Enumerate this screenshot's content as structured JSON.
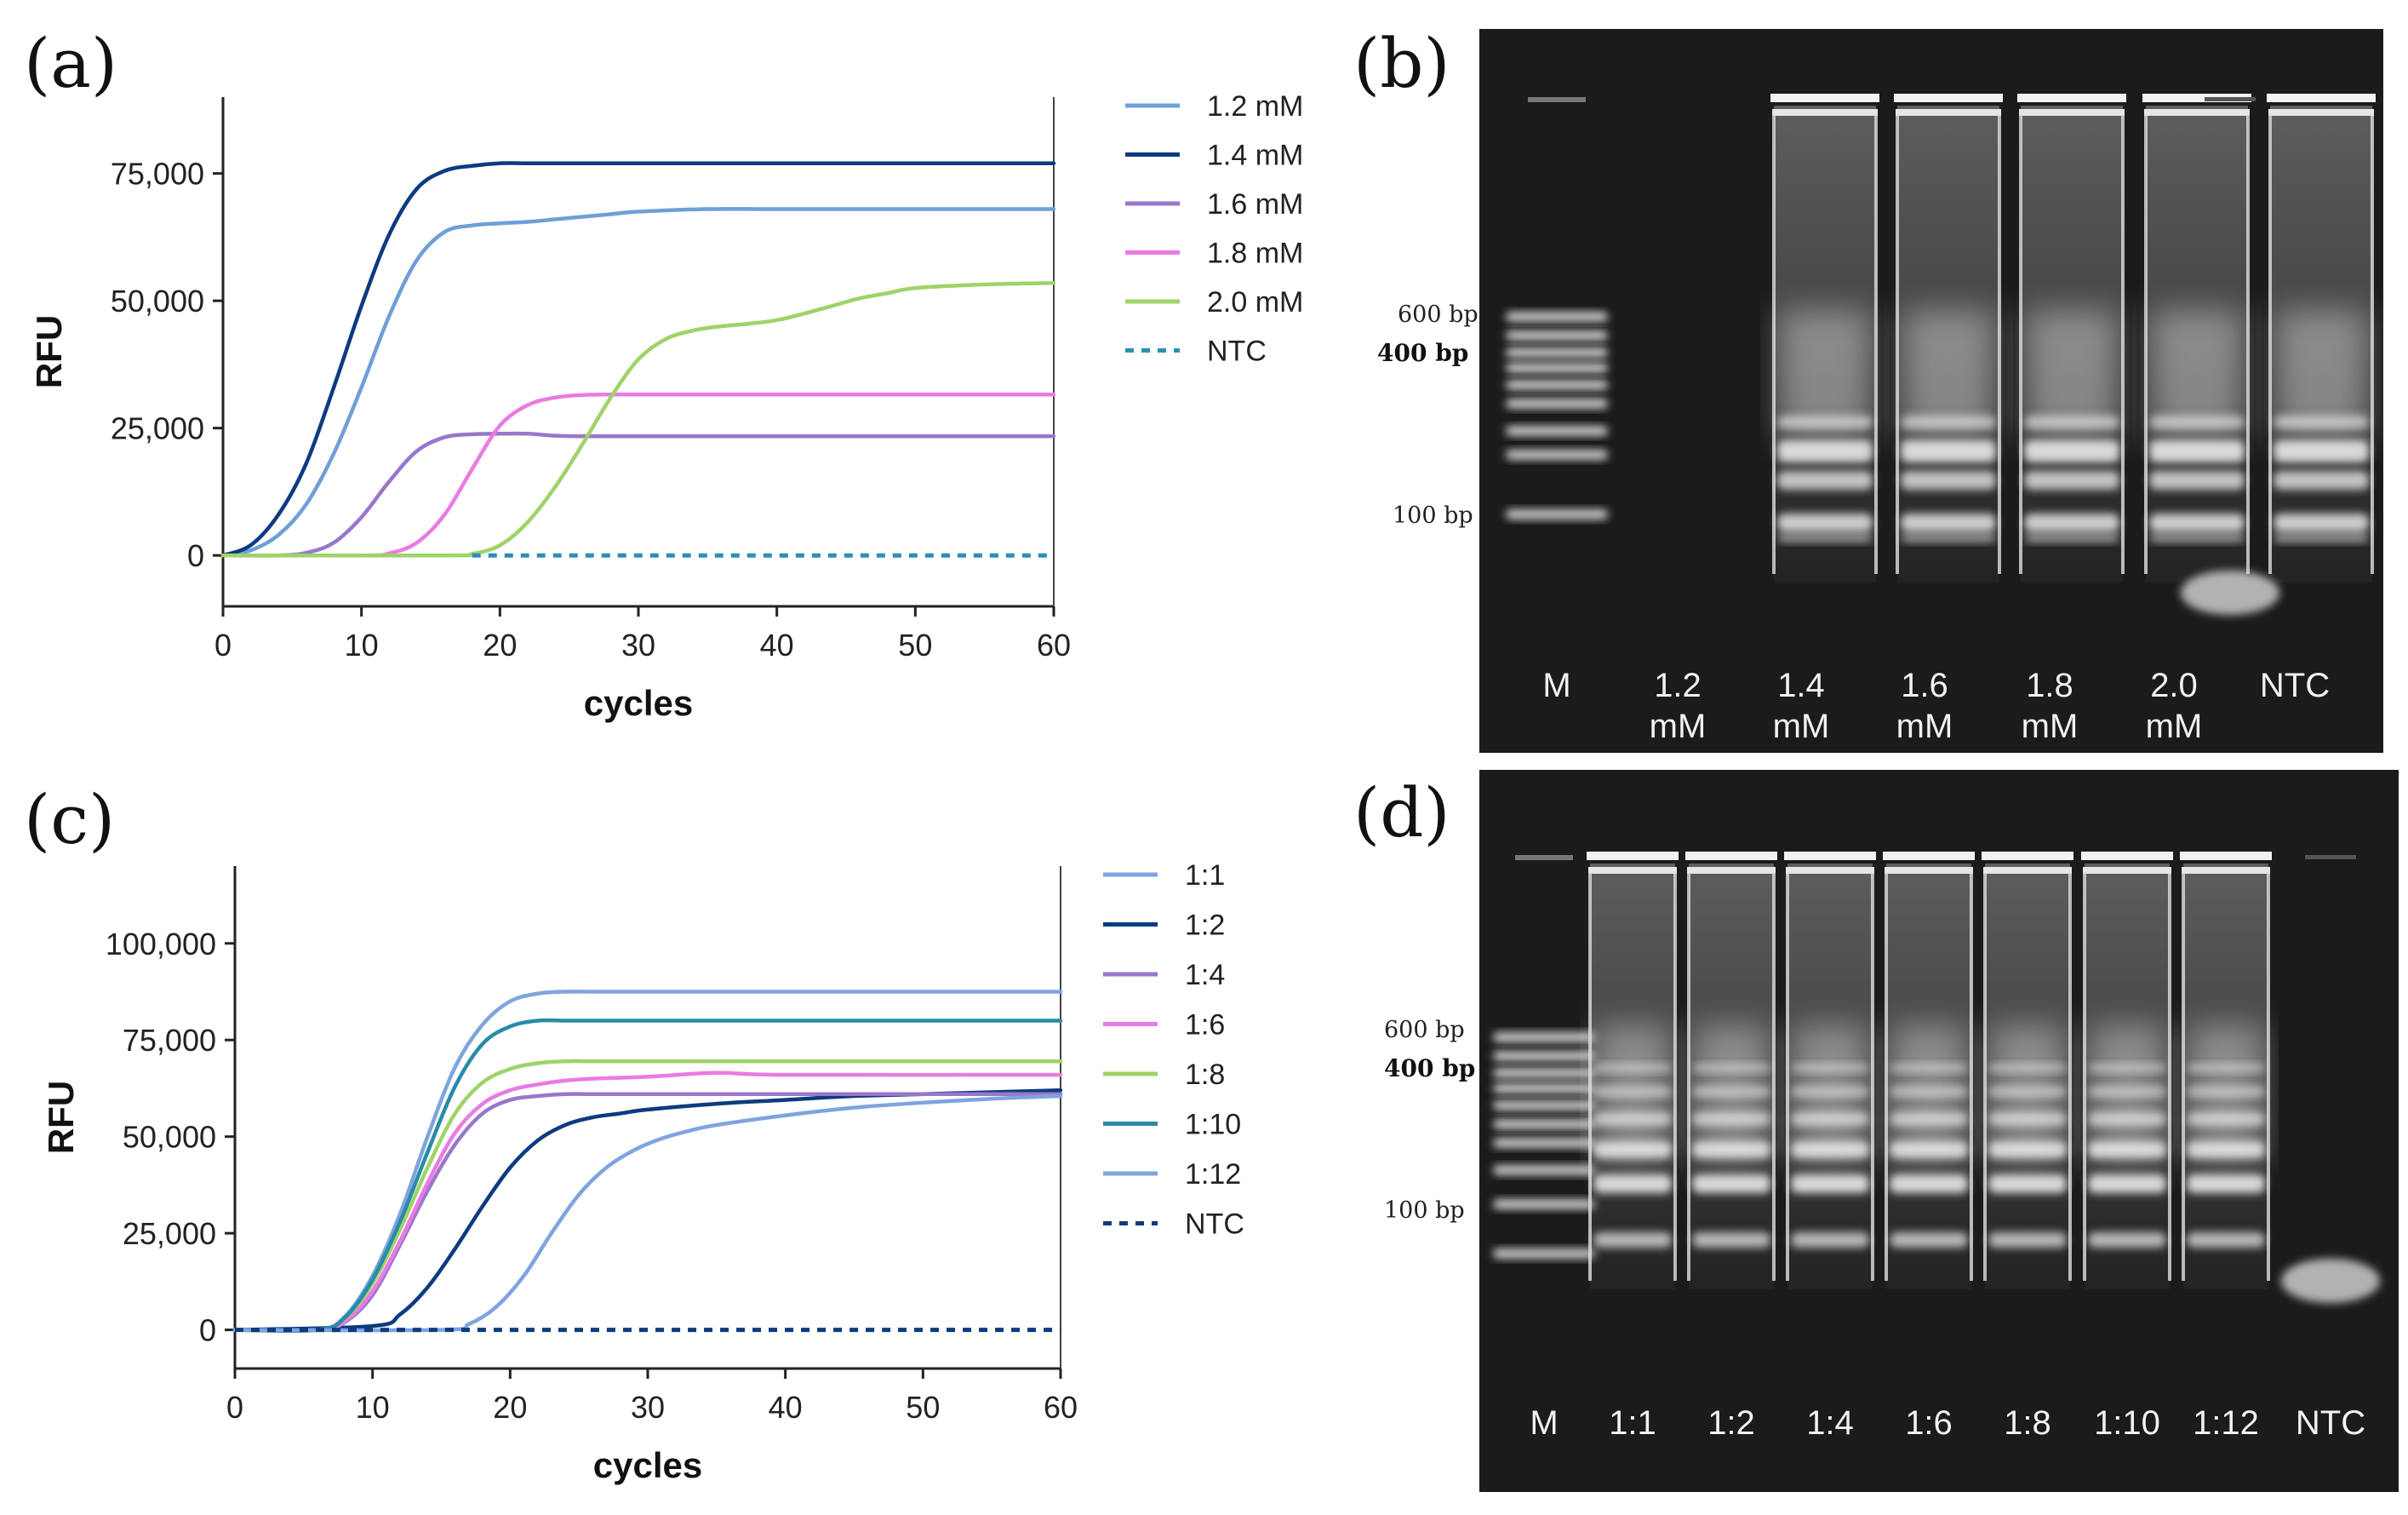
{
  "panels": {
    "a": "(a)",
    "b": "(b)",
    "c": "(c)",
    "d": "(d)"
  },
  "chart_data": [
    {
      "type": "line",
      "panel": "(a)",
      "xlabel": "cycles",
      "ylabel": "RFU",
      "xlim": [
        0,
        60
      ],
      "ylim": [
        -10000,
        90000
      ],
      "xticks": [
        0,
        10,
        20,
        30,
        40,
        50,
        60
      ],
      "yticks": [
        0,
        25000,
        50000,
        75000
      ],
      "ytick_labels": [
        "0",
        "25,000",
        "50,000",
        "75,000"
      ],
      "legend_position": "right",
      "series": [
        {
          "name": "1.2 mM",
          "color": "#6f9fd8",
          "dashed": false,
          "x": [
            0,
            2,
            4,
            6,
            8,
            10,
            12,
            14,
            16,
            18,
            20,
            22,
            24,
            26,
            28,
            30,
            35,
            40,
            50,
            60
          ],
          "y": [
            0,
            1000,
            4000,
            10000,
            20000,
            33000,
            47000,
            58000,
            63500,
            64800,
            65200,
            65500,
            66000,
            66500,
            67000,
            67500,
            68000,
            68000,
            68000,
            68000
          ]
        },
        {
          "name": "1.4 mM",
          "color": "#0d3b80",
          "dashed": false,
          "x": [
            0,
            2,
            4,
            6,
            8,
            10,
            12,
            14,
            16,
            18,
            20,
            22,
            24,
            30,
            40,
            50,
            60
          ],
          "y": [
            0,
            2000,
            8000,
            18000,
            33000,
            49000,
            63000,
            72000,
            75500,
            76500,
            77000,
            77000,
            77000,
            77000,
            77000,
            77000,
            77000
          ]
        },
        {
          "name": "1.6 mM",
          "color": "#9a76cc",
          "dashed": false,
          "x": [
            0,
            4,
            6,
            8,
            10,
            12,
            14,
            16,
            18,
            20,
            22,
            24,
            26,
            30,
            40,
            50,
            60
          ],
          "y": [
            0,
            0,
            500,
            2500,
            7500,
            14500,
            20500,
            23200,
            23800,
            23900,
            23900,
            23500,
            23400,
            23400,
            23400,
            23400,
            23400
          ]
        },
        {
          "name": "1.8 mM",
          "color": "#e97be3",
          "dashed": false,
          "x": [
            0,
            10,
            12,
            14,
            16,
            18,
            20,
            22,
            24,
            26,
            28,
            30,
            35,
            40,
            50,
            60
          ],
          "y": [
            0,
            0,
            400,
            2500,
            8000,
            17000,
            25500,
            29500,
            31000,
            31500,
            31600,
            31600,
            31600,
            31600,
            31600,
            31600
          ]
        },
        {
          "name": "2.0 mM",
          "color": "#9fd36a",
          "dashed": false,
          "x": [
            0,
            16,
            18,
            20,
            22,
            24,
            26,
            28,
            30,
            32,
            34,
            36,
            38,
            40,
            42,
            44,
            46,
            48,
            50,
            55,
            60
          ],
          "y": [
            0,
            0,
            300,
            2000,
            6500,
            13500,
            22000,
            31000,
            38500,
            42500,
            44200,
            45000,
            45500,
            46200,
            47500,
            49000,
            50500,
            51500,
            52500,
            53200,
            53500
          ]
        },
        {
          "name": "NTC",
          "color": "#2b8fb5",
          "dashed": true,
          "x": [
            18,
            60
          ],
          "y": [
            0,
            0
          ]
        }
      ]
    },
    {
      "type": "line",
      "panel": "(c)",
      "xlabel": "cycles",
      "ylabel": "RFU",
      "xlim": [
        0,
        60
      ],
      "ylim": [
        -10000,
        120000
      ],
      "xticks": [
        0,
        10,
        20,
        30,
        40,
        50,
        60
      ],
      "yticks": [
        0,
        25000,
        50000,
        75000,
        100000
      ],
      "ytick_labels": [
        "0",
        "25,000",
        "50,000",
        "75,000",
        "100,000"
      ],
      "legend_position": "right",
      "series": [
        {
          "name": "1:1",
          "color": "#7fa4de",
          "dashed": false,
          "x": [
            0,
            6,
            8,
            10,
            12,
            14,
            16,
            18,
            20,
            22,
            24,
            26,
            30,
            40,
            50,
            60
          ],
          "y": [
            0,
            0,
            3500,
            14000,
            30000,
            50000,
            68000,
            79000,
            85000,
            87000,
            87500,
            87500,
            87500,
            87500,
            87500,
            87500
          ]
        },
        {
          "name": "1:2",
          "color": "#0d3b80",
          "dashed": false,
          "x": [
            0,
            10,
            12,
            14,
            16,
            18,
            20,
            22,
            24,
            26,
            28,
            30,
            35,
            40,
            45,
            50,
            55,
            60
          ],
          "y": [
            0,
            1000,
            4000,
            11000,
            21000,
            32000,
            42000,
            49000,
            53000,
            55000,
            56000,
            57000,
            58500,
            59500,
            60500,
            61000,
            61500,
            62000
          ]
        },
        {
          "name": "1:4",
          "color": "#9a76cc",
          "dashed": false,
          "x": [
            0,
            6,
            8,
            10,
            12,
            14,
            16,
            18,
            20,
            22,
            24,
            26,
            30,
            40,
            50,
            60
          ],
          "y": [
            0,
            0,
            2000,
            9000,
            22000,
            36000,
            48000,
            56000,
            59500,
            60500,
            61000,
            61000,
            61000,
            61000,
            61000,
            61000
          ]
        },
        {
          "name": "1:6",
          "color": "#e97be3",
          "dashed": false,
          "x": [
            0,
            6,
            8,
            10,
            12,
            14,
            16,
            18,
            20,
            22,
            24,
            26,
            30,
            35,
            40,
            60
          ],
          "y": [
            0,
            0,
            2200,
            10000,
            23000,
            38000,
            51000,
            58500,
            62000,
            63500,
            64500,
            65000,
            65500,
            66500,
            66000,
            66000
          ]
        },
        {
          "name": "1:8",
          "color": "#9fd36a",
          "dashed": false,
          "x": [
            0,
            6,
            8,
            10,
            12,
            14,
            16,
            18,
            20,
            22,
            24,
            26,
            30,
            40,
            50,
            60
          ],
          "y": [
            0,
            0,
            3000,
            12000,
            26000,
            42000,
            56000,
            64000,
            67500,
            69000,
            69500,
            69500,
            69500,
            69500,
            69500,
            69500
          ]
        },
        {
          "name": "1:10",
          "color": "#2a8aa8",
          "dashed": false,
          "x": [
            0,
            6,
            8,
            10,
            12,
            14,
            16,
            18,
            20,
            22,
            24,
            26,
            30,
            40,
            50,
            60
          ],
          "y": [
            0,
            0,
            3200,
            13000,
            28000,
            46000,
            63000,
            74000,
            78500,
            80000,
            80000,
            80000,
            80000,
            80000,
            80000,
            80000
          ]
        },
        {
          "name": "1:12",
          "color": "#7fa4de",
          "dashed": false,
          "x": [
            0,
            15,
            17,
            19,
            21,
            23,
            25,
            27,
            29,
            31,
            33,
            35,
            40,
            45,
            50,
            55,
            60
          ],
          "y": [
            0,
            0,
            1500,
            6000,
            14000,
            25000,
            35000,
            42000,
            46500,
            49500,
            51500,
            53000,
            55500,
            57500,
            58800,
            59800,
            60500
          ]
        },
        {
          "name": "NTC",
          "color": "#0d3b80",
          "dashed": true,
          "x": [
            0,
            60
          ],
          "y": [
            0,
            0
          ]
        }
      ]
    }
  ],
  "gel_b": {
    "ladder_labels": {
      "top": "600 bp",
      "mid": "400 bp",
      "low": "100 bp"
    },
    "lanes": [
      {
        "line1": "M",
        "line2": ""
      },
      {
        "line1": "1.2",
        "line2": "mM"
      },
      {
        "line1": "1.4",
        "line2": "mM"
      },
      {
        "line1": "1.6",
        "line2": "mM"
      },
      {
        "line1": "1.8",
        "line2": "mM"
      },
      {
        "line1": "2.0",
        "line2": "mM"
      },
      {
        "line1": "NTC",
        "line2": ""
      }
    ]
  },
  "gel_d": {
    "ladder_labels": {
      "top": "600 bp",
      "mid": "400 bp",
      "low": "100 bp"
    },
    "lanes": [
      "M",
      "1:1",
      "1:2",
      "1:4",
      "1:6",
      "1:8",
      "1:10",
      "1:12",
      "NTC"
    ]
  }
}
